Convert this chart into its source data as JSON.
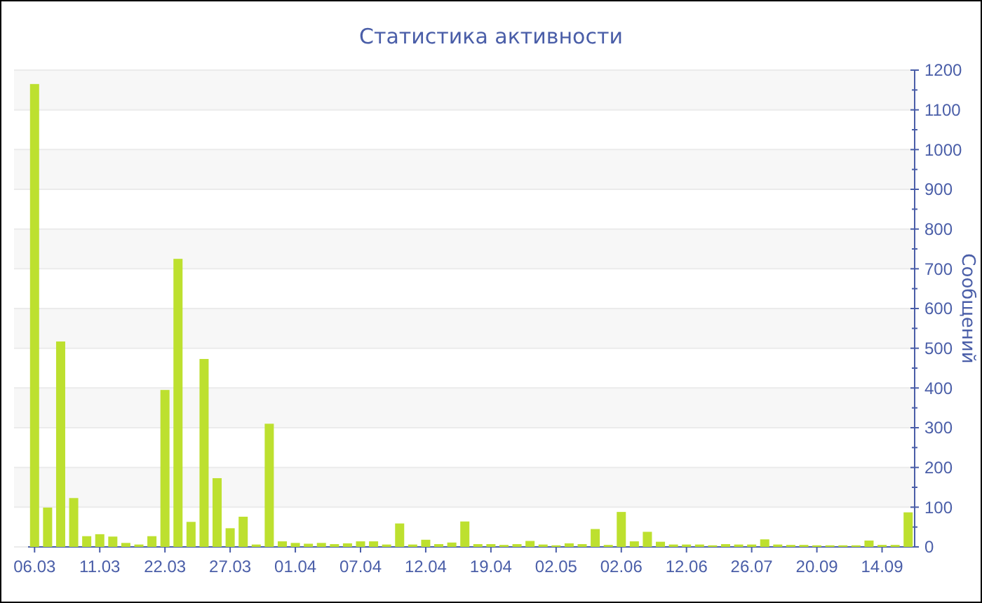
{
  "chart_data": {
    "type": "bar",
    "title": "Статистика активности",
    "ylabel": "Сообщений",
    "categories": [
      "06.03",
      null,
      null,
      null,
      null,
      "11.03",
      null,
      null,
      null,
      null,
      "22.03",
      null,
      null,
      null,
      null,
      "27.03",
      null,
      null,
      null,
      null,
      "01.04",
      null,
      null,
      null,
      null,
      "07.04",
      null,
      null,
      null,
      null,
      "12.04",
      null,
      null,
      null,
      null,
      "19.04",
      null,
      null,
      null,
      null,
      "02.05",
      null,
      null,
      null,
      null,
      "02.06",
      null,
      null,
      null,
      null,
      "12.06",
      null,
      null,
      null,
      null,
      "26.07",
      null,
      null,
      null,
      null,
      "20.09",
      null,
      null,
      null,
      null,
      "14.09",
      null,
      null
    ],
    "values": [
      1165,
      99,
      517,
      123,
      27,
      32,
      26,
      10,
      6,
      27,
      395,
      725,
      63,
      473,
      173,
      47,
      76,
      6,
      310,
      14,
      10,
      8,
      10,
      7,
      9,
      14,
      14,
      6,
      59,
      6,
      18,
      7,
      11,
      64,
      7,
      7,
      5,
      7,
      15,
      6,
      4,
      9,
      7,
      45,
      5,
      88,
      14,
      38,
      13,
      6,
      6,
      6,
      4,
      7,
      6,
      6,
      19,
      6,
      5,
      5,
      4,
      4,
      4,
      4,
      16,
      5,
      5,
      87
    ],
    "color": "#bde02f",
    "ylim": [
      0,
      1200
    ],
    "yticks": [
      0,
      {
        "value": 50,
        "label": null
      },
      100,
      {
        "value": 150,
        "label": null
      },
      200,
      {
        "value": 250,
        "label": null
      },
      300,
      {
        "value": 350,
        "label": null
      },
      400,
      {
        "value": 450,
        "label": null
      },
      500,
      {
        "value": 550,
        "label": null
      },
      600,
      {
        "value": 650,
        "label": null
      },
      700,
      {
        "value": 750,
        "label": null
      },
      800,
      {
        "value": 850,
        "label": null
      },
      900,
      {
        "value": 950,
        "label": null
      },
      1000,
      {
        "value": 1050,
        "label": null
      },
      1100,
      {
        "value": 1150,
        "label": null
      },
      1200
    ],
    "grid": "y"
  }
}
